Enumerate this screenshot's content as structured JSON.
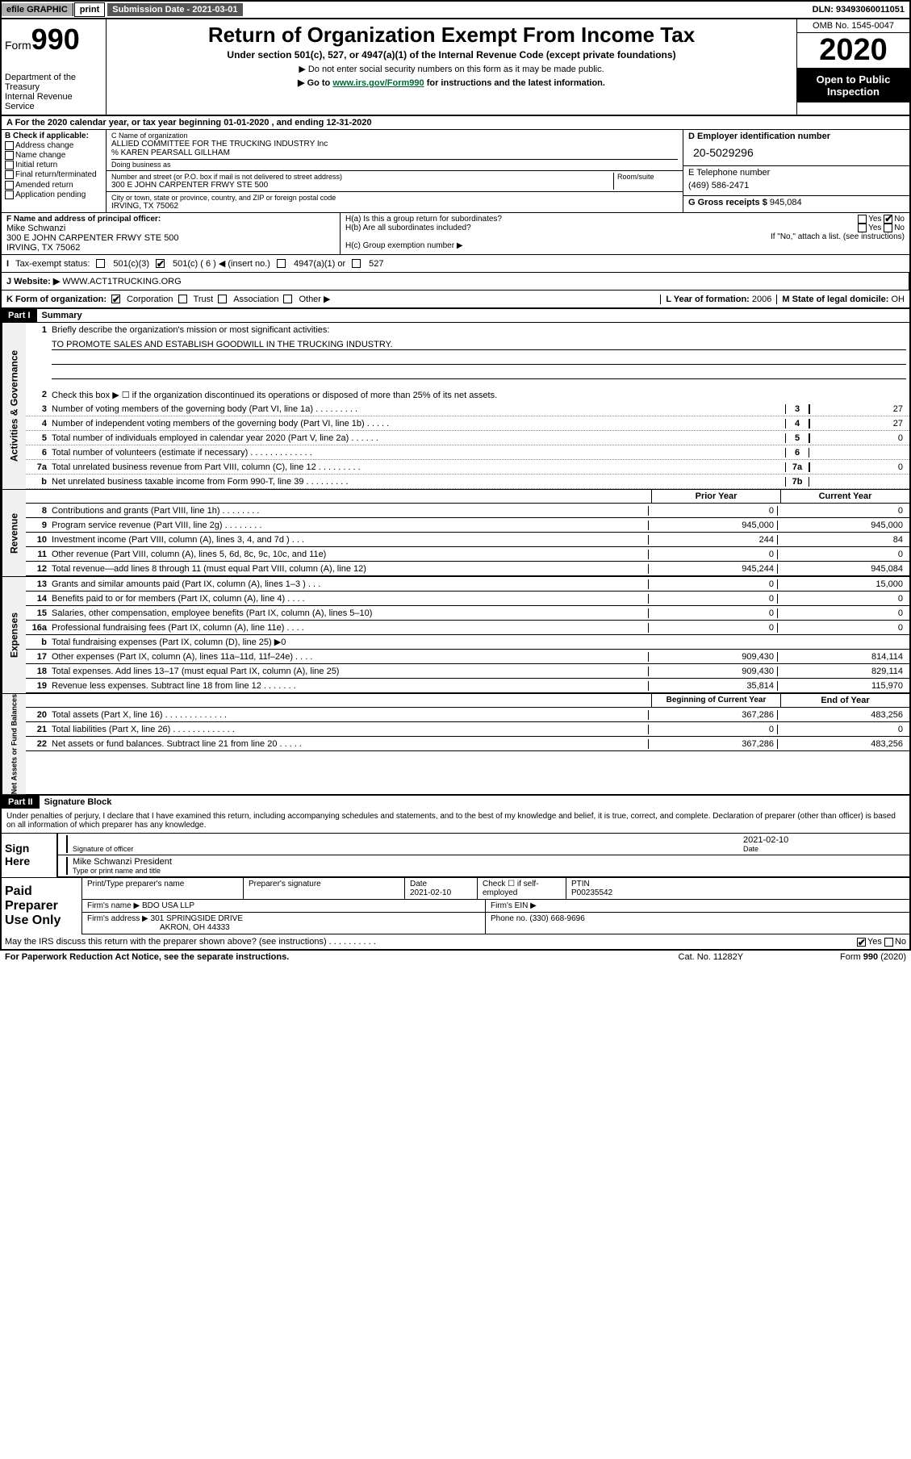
{
  "topbar": {
    "efile": "efile GRAPHIC",
    "print": "print",
    "sub_date_label": "Submission Date - 2021-03-01",
    "dln": "DLN: 93493060011051"
  },
  "header": {
    "form_label": "Form",
    "form_num": "990",
    "dept": "Department of the Treasury\nInternal Revenue Service",
    "title": "Return of Organization Exempt From Income Tax",
    "subtitle": "Under section 501(c), 527, or 4947(a)(1) of the Internal Revenue Code (except private foundations)",
    "note1": "▶ Do not enter social security numbers on this form as it may be made public.",
    "note2_pre": "▶ Go to ",
    "note2_link": "www.irs.gov/Form990",
    "note2_post": " for instructions and the latest information.",
    "omb": "OMB No. 1545-0047",
    "year": "2020",
    "open": "Open to Public Inspection"
  },
  "rowA": "A For the 2020 calendar year, or tax year beginning 01-01-2020   , and ending 12-31-2020",
  "boxB": {
    "title": "B Check if applicable:",
    "opts": [
      "Address change",
      "Name change",
      "Initial return",
      "Final return/terminated",
      "Amended return",
      "Application pending"
    ]
  },
  "boxC": {
    "label_name": "C Name of organization",
    "name": "ALLIED COMMITTEE FOR THE TRUCKING INDUSTRY Inc",
    "care_of": "% KAREN PEARSALL GILLHAM",
    "dba_label": "Doing business as",
    "addr_label": "Number and street (or P.O. box if mail is not delivered to street address)",
    "room_label": "Room/suite",
    "addr": "300 E JOHN CARPENTER FRWY STE 500",
    "city_label": "City or town, state or province, country, and ZIP or foreign postal code",
    "city": "IRVING, TX  75062"
  },
  "boxD": {
    "label": "D Employer identification number",
    "ein": "20-5029296"
  },
  "boxE": {
    "label": "E Telephone number",
    "phone": "(469) 586-2471"
  },
  "boxG": {
    "label": "G Gross receipts $",
    "val": "945,084"
  },
  "boxF": {
    "label": "F Name and address of principal officer:",
    "name": "Mike Schwanzi",
    "addr1": "300 E JOHN CARPENTER FRWY STE 500",
    "addr2": "IRVING, TX  75062"
  },
  "boxH": {
    "a_label": "H(a)  Is this a group return for subordinates?",
    "b_label": "H(b)  Are all subordinates included?",
    "note": "If \"No,\" attach a list. (see instructions)",
    "c_label": "H(c)  Group exemption number ▶"
  },
  "rowI": {
    "label": "Tax-exempt status:",
    "opt1": "501(c)(3)",
    "opt2": "501(c) ( 6 ) ◀ (insert no.)",
    "opt3": "4947(a)(1) or",
    "opt4": "527"
  },
  "rowJ": {
    "label": "J  Website: ▶",
    "val": "WWW.ACT1TRUCKING.ORG"
  },
  "rowK": {
    "label": "K Form of organization:",
    "opts": [
      "Corporation",
      "Trust",
      "Association",
      "Other ▶"
    ]
  },
  "rowL": {
    "label": "L Year of formation:",
    "val": "2006"
  },
  "rowM": {
    "label": "M State of legal domicile:",
    "val": "OH"
  },
  "part1": {
    "hdr": "Part I",
    "title": "Summary",
    "side1": "Activities & Governance",
    "line1_label": "Briefly describe the organization's mission or most significant activities:",
    "line1_val": "TO PROMOTE SALES AND ESTABLISH GOODWILL IN THE TRUCKING INDUSTRY.",
    "line2": "Check this box ▶ ☐  if the organization discontinued its operations or disposed of more than 25% of its net assets.",
    "lines_ag": [
      {
        "n": "3",
        "t": "Number of voting members of the governing body (Part VI, line 1a)   .    .    .    .    .    .    .    .    .",
        "box": "3",
        "v": "27"
      },
      {
        "n": "4",
        "t": "Number of independent voting members of the governing body (Part VI, line 1b)  .    .    .    .    .",
        "box": "4",
        "v": "27"
      },
      {
        "n": "5",
        "t": "Total number of individuals employed in calendar year 2020 (Part V, line 2a)  .    .    .    .    .    .",
        "box": "5",
        "v": "0"
      },
      {
        "n": "6",
        "t": "Total number of volunteers (estimate if necessary)  .    .    .    .    .    .    .    .    .    .    .    .    .",
        "box": "6",
        "v": ""
      },
      {
        "n": "7a",
        "t": "Total unrelated business revenue from Part VIII, column (C), line 12  .    .    .    .    .    .    .    .    .",
        "box": "7a",
        "v": "0"
      },
      {
        "n": "b",
        "t": "Net unrelated business taxable income from Form 990-T, line 39  .    .    .    .    .    .    .    .    .",
        "box": "7b",
        "v": ""
      }
    ],
    "col_prior": "Prior Year",
    "col_current": "Current Year",
    "side2": "Revenue",
    "lines_rev": [
      {
        "n": "8",
        "t": "Contributions and grants (Part VIII, line 1h)    .    .    .    .    .    .    .    .",
        "v1": "0",
        "v2": "0"
      },
      {
        "n": "9",
        "t": "Program service revenue (Part VIII, line 2g)   .    .    .    .    .    .    .    .",
        "v1": "945,000",
        "v2": "945,000"
      },
      {
        "n": "10",
        "t": "Investment income (Part VIII, column (A), lines 3, 4, and 7d )    .    .    .",
        "v1": "244",
        "v2": "84"
      },
      {
        "n": "11",
        "t": "Other revenue (Part VIII, column (A), lines 5, 6d, 8c, 9c, 10c, and 11e)",
        "v1": "0",
        "v2": "0"
      },
      {
        "n": "12",
        "t": "Total revenue—add lines 8 through 11 (must equal Part VIII, column (A), line 12)",
        "v1": "945,244",
        "v2": "945,084"
      }
    ],
    "side3": "Expenses",
    "lines_exp": [
      {
        "n": "13",
        "t": "Grants and similar amounts paid (Part IX, column (A), lines 1–3 )    .    .    .",
        "v1": "0",
        "v2": "15,000"
      },
      {
        "n": "14",
        "t": "Benefits paid to or for members (Part IX, column (A), line 4)   .    .    .    .",
        "v1": "0",
        "v2": "0"
      },
      {
        "n": "15",
        "t": "Salaries, other compensation, employee benefits (Part IX, column (A), lines 5–10)",
        "v1": "0",
        "v2": "0"
      },
      {
        "n": "16a",
        "t": "Professional fundraising fees (Part IX, column (A), line 11e)   .    .    .    .",
        "v1": "0",
        "v2": "0"
      },
      {
        "n": "b",
        "t": "Total fundraising expenses (Part IX, column (D), line 25) ▶0",
        "v1": "",
        "v2": "",
        "shaded": true
      },
      {
        "n": "17",
        "t": "Other expenses (Part IX, column (A), lines 11a–11d, 11f–24e)   .    .    .    .",
        "v1": "909,430",
        "v2": "814,114"
      },
      {
        "n": "18",
        "t": "Total expenses. Add lines 13–17 (must equal Part IX, column (A), line 25)",
        "v1": "909,430",
        "v2": "829,114"
      },
      {
        "n": "19",
        "t": "Revenue less expenses. Subtract line 18 from line 12  .    .    .    .    .    .    .",
        "v1": "35,814",
        "v2": "115,970"
      }
    ],
    "col_begin": "Beginning of Current Year",
    "col_end": "End of Year",
    "side4": "Net Assets or Fund Balances",
    "lines_na": [
      {
        "n": "20",
        "t": "Total assets (Part X, line 16)   .    .    .    .    .    .    .    .    .    .    .    .    .",
        "v1": "367,286",
        "v2": "483,256"
      },
      {
        "n": "21",
        "t": "Total liabilities (Part X, line 26)   .    .    .    .    .    .    .    .    .    .    .    .    .",
        "v1": "0",
        "v2": "0"
      },
      {
        "n": "22",
        "t": "Net assets or fund balances. Subtract line 21 from line 20 .    .    .    .    .",
        "v1": "367,286",
        "v2": "483,256"
      }
    ]
  },
  "part2": {
    "hdr": "Part II",
    "title": "Signature Block",
    "decl": "Under penalties of perjury, I declare that I have examined this return, including accompanying schedules and statements, and to the best of my knowledge and belief, it is true, correct, and complete. Declaration of preparer (other than officer) is based on all information of which preparer has any knowledge.",
    "sign_here": "Sign Here",
    "sig_officer": "Signature of officer",
    "sig_date": "2021-02-10",
    "date_label": "Date",
    "officer_name": "Mike Schwanzi  President",
    "type_label": "Type or print name and title",
    "paid_prep": "Paid Preparer Use Only",
    "prep_name_label": "Print/Type preparer's name",
    "prep_sig_label": "Preparer's signature",
    "prep_date_label": "Date",
    "prep_date": "2021-02-10",
    "self_emp": "Check ☐ if self-employed",
    "ptin_label": "PTIN",
    "ptin": "P00235542",
    "firm_name_label": "Firm's name    ▶",
    "firm_name": "BDO USA LLP",
    "firm_ein_label": "Firm's EIN ▶",
    "firm_addr_label": "Firm's address ▶",
    "firm_addr1": "301 SPRINGSIDE DRIVE",
    "firm_addr2": "AKRON, OH  44333",
    "firm_phone_label": "Phone no.",
    "firm_phone": "(330) 668-9696",
    "discuss": "May the IRS discuss this return with the preparer shown above? (see instructions)    .    .    .    .    .    .    .    .    .    .",
    "yes": "Yes",
    "no": "No"
  },
  "footer": {
    "pra": "For Paperwork Reduction Act Notice, see the separate instructions.",
    "cat": "Cat. No. 11282Y",
    "form": "Form 990 (2020)"
  }
}
